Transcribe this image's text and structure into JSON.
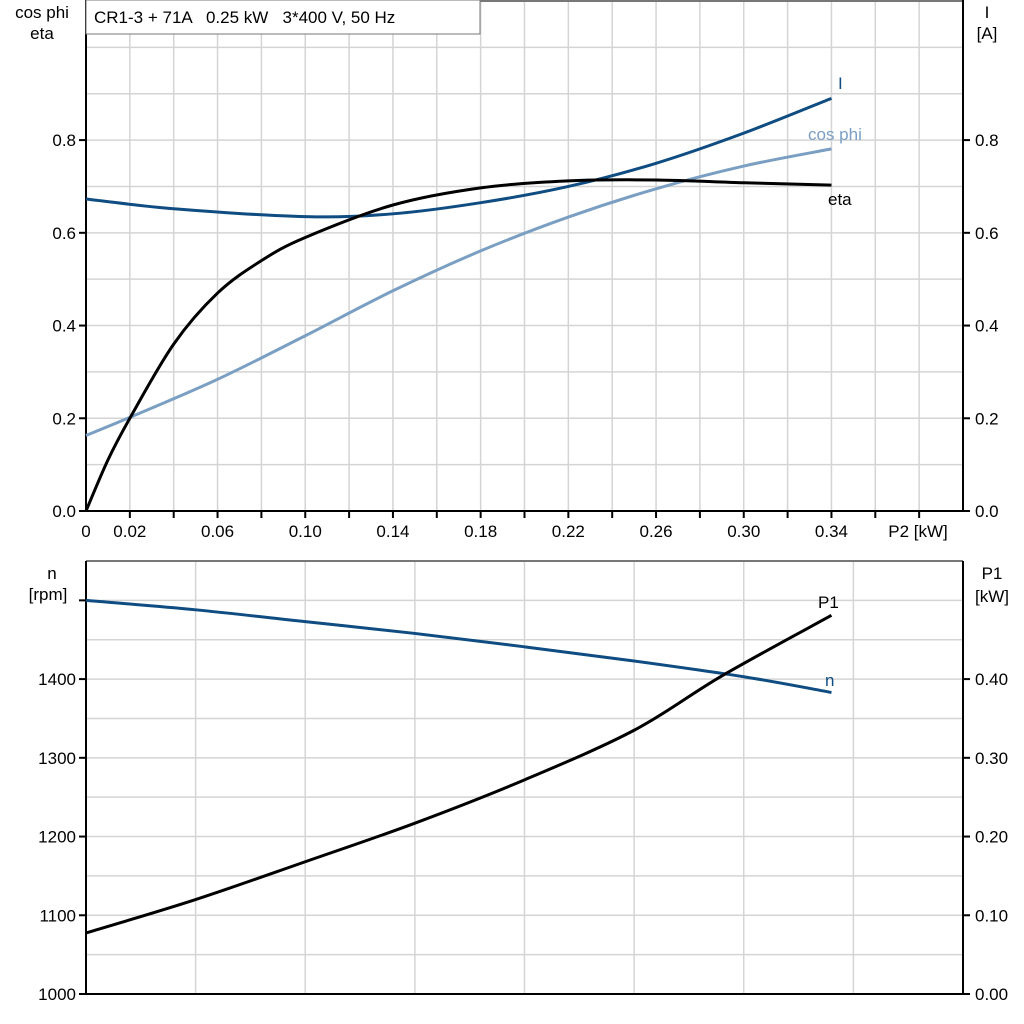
{
  "chart_data": [
    {
      "type": "line",
      "title": "CR1-3 + 71A   0.25 kW   3*400 V, 50 Hz",
      "xlabel": "P2 [kW]",
      "ylabel_left": [
        "cos phi",
        "eta"
      ],
      "ylabel_right": [
        "I",
        "[A]"
      ],
      "xlim": [
        0,
        0.4
      ],
      "ylim": [
        0,
        1.1
      ],
      "grid": true,
      "x_tick_labels": [
        "0",
        "0.02",
        "0.06",
        "0.10",
        "0.14",
        "0.18",
        "0.22",
        "0.26",
        "0.30",
        "0.34"
      ],
      "y_tick_labels_left": [
        "0.0",
        "0.2",
        "0.4",
        "0.6",
        "0.8"
      ],
      "y_tick_labels_right": [
        "0.0",
        "0.2",
        "0.4",
        "0.6",
        "0.8"
      ],
      "series": [
        {
          "name": "I",
          "color": "#0f4c81",
          "x": [
            0,
            0.04,
            0.1,
            0.14,
            0.18,
            0.22,
            0.26,
            0.3,
            0.34
          ],
          "y": [
            0.673,
            0.652,
            0.635,
            0.641,
            0.665,
            0.7,
            0.75,
            0.815,
            0.89
          ]
        },
        {
          "name": "cos phi",
          "color": "#7a9fc2",
          "x": [
            0,
            0.02,
            0.06,
            0.1,
            0.14,
            0.18,
            0.22,
            0.26,
            0.3,
            0.34
          ],
          "y": [
            0.163,
            0.202,
            0.284,
            0.378,
            0.475,
            0.561,
            0.634,
            0.695,
            0.744,
            0.781
          ]
        },
        {
          "name": "eta",
          "color": "#000000",
          "x": [
            0,
            0.01,
            0.02,
            0.04,
            0.06,
            0.08,
            0.1,
            0.14,
            0.18,
            0.22,
            0.26,
            0.3,
            0.34
          ],
          "y": [
            0,
            0.11,
            0.2,
            0.36,
            0.47,
            0.54,
            0.59,
            0.66,
            0.697,
            0.712,
            0.714,
            0.708,
            0.703
          ]
        }
      ]
    },
    {
      "type": "line",
      "ylabel_left": [
        "n",
        "[rpm]"
      ],
      "ylabel_right": [
        "P1",
        "[kW]"
      ],
      "xlim": [
        0,
        0.4
      ],
      "ylim_left": [
        1000,
        1550
      ],
      "ylim_right": [
        0,
        0.55
      ],
      "grid": true,
      "y_tick_labels_left": [
        "1000",
        "1100",
        "1200",
        "1300",
        "1400"
      ],
      "y_tick_labels_right": [
        "0.00",
        "0.10",
        "0.20",
        "0.30",
        "0.40"
      ],
      "series": [
        {
          "name": "n",
          "axis": "left",
          "color": "#0f4c81",
          "x": [
            0,
            0.05,
            0.1,
            0.15,
            0.2,
            0.25,
            0.3,
            0.34
          ],
          "y": [
            1500,
            1488,
            1473,
            1458,
            1441,
            1423,
            1403,
            1383
          ]
        },
        {
          "name": "P1",
          "axis": "right",
          "color": "#000000",
          "x": [
            0,
            0.05,
            0.1,
            0.15,
            0.2,
            0.25,
            0.29,
            0.34
          ],
          "y": [
            0.0775,
            0.12,
            0.168,
            0.217,
            0.272,
            0.335,
            0.404,
            0.481
          ]
        }
      ]
    }
  ]
}
